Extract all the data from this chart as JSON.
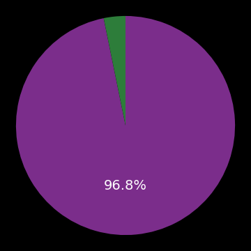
{
  "values": [
    96.8,
    3.2
  ],
  "colors": [
    "#7b2d8b",
    "#2d7d3a"
  ],
  "label_large": "96.8%",
  "label_fontsize": 14,
  "label_color": "#ffffff",
  "background_color": "#000000",
  "startangle": 90,
  "figsize": [
    3.6,
    3.6
  ],
  "dpi": 100
}
